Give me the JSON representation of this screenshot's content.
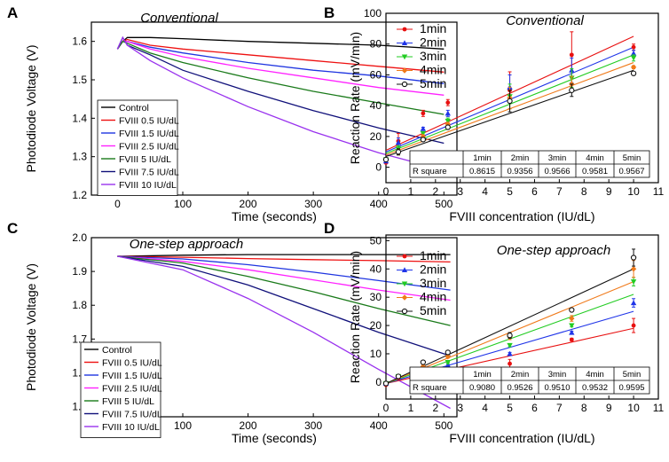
{
  "colors": {
    "control": "#000000",
    "fviii_0_5": "#ee1111",
    "fviii_1_5": "#1f35e0",
    "fviii_2_5": "#ff22ff",
    "fviii_5": "#1a7a1a",
    "fviii_7_5": "#10107a",
    "fviii_10": "#9932ee",
    "min1": "#e81010",
    "min2": "#2035e8",
    "min3": "#22cc22",
    "min4": "#f07a1a",
    "min5": "#111111"
  },
  "chart_data": [
    {
      "id": "A",
      "panel_label": "A",
      "type": "line",
      "title": "Conventional",
      "xlabel": "Time (seconds)",
      "ylabel": "Photodiode Voltage (V)",
      "xlim": [
        -40,
        520
      ],
      "ylim": [
        1.2,
        1.65
      ],
      "xticks": [
        "0",
        "100",
        "200",
        "300",
        "400",
        "500"
      ],
      "yticks": [
        "1.2",
        "1.3",
        "1.4",
        "1.5",
        "1.6"
      ],
      "xtick_values": [
        0,
        100,
        200,
        300,
        400,
        500
      ],
      "ytick_values": [
        1.2,
        1.3,
        1.4,
        1.5,
        1.6
      ],
      "legend": "bottom-left",
      "series": [
        {
          "name": "Control",
          "color": "#000000",
          "x": [
            0,
            8,
            15,
            50,
            100,
            200,
            300,
            400,
            500
          ],
          "y": [
            1.58,
            1.6,
            1.61,
            1.61,
            1.607,
            1.6,
            1.595,
            1.59,
            1.58
          ]
        },
        {
          "name": "FVIII 0.5 IU/dL",
          "color": "#ee1111",
          "x": [
            0,
            8,
            15,
            50,
            100,
            200,
            300,
            400,
            500
          ],
          "y": [
            1.58,
            1.6,
            1.605,
            1.59,
            1.58,
            1.565,
            1.55,
            1.535,
            1.52
          ]
        },
        {
          "name": "FVIII 1.5 IU/dL",
          "color": "#1f35e0",
          "x": [
            0,
            8,
            15,
            50,
            100,
            200,
            300,
            400,
            500
          ],
          "y": [
            1.58,
            1.6,
            1.6,
            1.585,
            1.57,
            1.545,
            1.525,
            1.51,
            1.49
          ]
        },
        {
          "name": "FVIII 2.5 IU/dL",
          "color": "#ff22ff",
          "x": [
            0,
            8,
            15,
            50,
            100,
            200,
            300,
            400,
            500
          ],
          "y": [
            1.58,
            1.6,
            1.6,
            1.58,
            1.56,
            1.53,
            1.505,
            1.48,
            1.46
          ]
        },
        {
          "name": "FVIII 5 IU/dL",
          "color": "#1a7a1a",
          "x": [
            0,
            8,
            15,
            50,
            100,
            200,
            300,
            400,
            500
          ],
          "y": [
            1.58,
            1.6,
            1.595,
            1.57,
            1.545,
            1.505,
            1.47,
            1.44,
            1.41
          ]
        },
        {
          "name": "FVIII 7.5 IU/dL",
          "color": "#10107a",
          "x": [
            0,
            8,
            15,
            50,
            100,
            200,
            300,
            400,
            500
          ],
          "y": [
            1.58,
            1.61,
            1.59,
            1.565,
            1.525,
            1.47,
            1.42,
            1.375,
            1.335
          ]
        },
        {
          "name": "FVIII 10 IU/dL",
          "color": "#9932ee",
          "x": [
            0,
            8,
            15,
            50,
            100,
            200,
            300,
            400,
            500
          ],
          "y": [
            1.58,
            1.61,
            1.59,
            1.55,
            1.505,
            1.43,
            1.365,
            1.31,
            1.265
          ]
        }
      ]
    },
    {
      "id": "B",
      "panel_label": "B",
      "type": "scatter",
      "title": "Conventional",
      "xlabel": "FVIII concentration (IU/dL)",
      "ylabel": "Reaction Rate (mV/min)",
      "xlim": [
        0,
        11
      ],
      "ylim": [
        -10,
        100
      ],
      "xticks": [
        "0",
        "1",
        "2",
        "3",
        "4",
        "5",
        "6",
        "7",
        "8",
        "9",
        "10",
        "11"
      ],
      "yticks": [
        "0",
        "20",
        "40",
        "60",
        "80",
        "100"
      ],
      "xtick_values": [
        0,
        1,
        2,
        3,
        4,
        5,
        6,
        7,
        8,
        9,
        10,
        11
      ],
      "ytick_values": [
        0,
        20,
        40,
        60,
        80,
        100
      ],
      "legend": "top-left",
      "x": [
        0,
        0.5,
        1.5,
        2.5,
        5,
        7.5,
        10
      ],
      "series": [
        {
          "name": "1min",
          "color": "#e81010",
          "marker": "circle-filled",
          "y": [
            3,
            17,
            35,
            42,
            50,
            73,
            78
          ],
          "err": [
            0,
            5,
            2,
            2,
            12,
            15,
            2
          ],
          "fit": [
            11,
            85
          ]
        },
        {
          "name": "2min",
          "color": "#2035e8",
          "marker": "triangle",
          "y": [
            4,
            16,
            25,
            35,
            52,
            63,
            74
          ],
          "err": [
            0,
            3,
            1,
            2,
            8,
            8,
            2
          ],
          "fit": [
            10,
            78
          ]
        },
        {
          "name": "3min",
          "color": "#22cc22",
          "marker": "triangle-down",
          "y": [
            5,
            12,
            22,
            30,
            46,
            58,
            71
          ],
          "err": [
            0,
            2,
            1,
            2,
            8,
            6,
            2
          ],
          "fit": [
            9,
            73
          ]
        },
        {
          "name": "4min",
          "color": "#f07a1a",
          "marker": "diamond",
          "y": [
            5,
            10,
            20,
            28,
            45,
            54,
            65
          ],
          "err": [
            0,
            2,
            1,
            1,
            7,
            5,
            1
          ],
          "fit": [
            8,
            68
          ]
        },
        {
          "name": "5min",
          "color": "#111111",
          "marker": "circle-open",
          "y": [
            5,
            10,
            18,
            26,
            43,
            50,
            61
          ],
          "err": [
            0,
            2,
            1,
            1,
            7,
            4,
            1
          ],
          "fit": [
            7,
            63
          ]
        }
      ],
      "table": {
        "header": [
          "",
          "1min",
          "2min",
          "3min",
          "4min",
          "5min"
        ],
        "rows": [
          [
            "R square",
            "0.8615",
            "0.9356",
            "0.9566",
            "0.9581",
            "0.9567"
          ]
        ]
      }
    },
    {
      "id": "C",
      "panel_label": "C",
      "type": "line",
      "title": "One-step approach",
      "xlabel": "Time (seconds)",
      "ylabel": "Photodiode Voltage (V)",
      "xlim": [
        -40,
        520
      ],
      "ylim": [
        1.47,
        2.0
      ],
      "xticks": [
        "0",
        "100",
        "200",
        "300",
        "400",
        "500"
      ],
      "yticks": [
        "1.5",
        "1.6",
        "1.7",
        "1.8",
        "1.9",
        "2.0"
      ],
      "xtick_values": [
        0,
        100,
        200,
        300,
        400,
        500
      ],
      "ytick_values": [
        1.5,
        1.6,
        1.7,
        1.8,
        1.9,
        2.0
      ],
      "legend": "bottom-left",
      "series": [
        {
          "name": "Control",
          "color": "#000000",
          "x": [
            0,
            100,
            200,
            300,
            400,
            510
          ],
          "y": [
            1.945,
            1.948,
            1.95,
            1.95,
            1.95,
            1.95
          ]
        },
        {
          "name": "FVIII 0.5 IU/dL",
          "color": "#ee1111",
          "x": [
            0,
            100,
            200,
            300,
            400,
            510
          ],
          "y": [
            1.945,
            1.942,
            1.938,
            1.935,
            1.932,
            1.928
          ]
        },
        {
          "name": "FVIII 1.5 IU/dL",
          "color": "#1f35e0",
          "x": [
            0,
            100,
            200,
            300,
            400,
            510
          ],
          "y": [
            1.945,
            1.937,
            1.92,
            1.898,
            1.873,
            1.845
          ]
        },
        {
          "name": "FVIII 2.5 IU/dL",
          "color": "#ff22ff",
          "x": [
            0,
            100,
            200,
            300,
            400,
            510
          ],
          "y": [
            1.945,
            1.93,
            1.905,
            1.875,
            1.845,
            1.815
          ]
        },
        {
          "name": "FVIII 5 IU/dL",
          "color": "#1a7a1a",
          "x": [
            0,
            100,
            200,
            300,
            400,
            510
          ],
          "y": [
            1.945,
            1.925,
            1.885,
            1.84,
            1.79,
            1.74
          ]
        },
        {
          "name": "FVIII 7.5 IU/dL",
          "color": "#10107a",
          "x": [
            0,
            100,
            200,
            300,
            400,
            510
          ],
          "y": [
            1.945,
            1.915,
            1.86,
            1.79,
            1.72,
            1.65
          ]
        },
        {
          "name": "FVIII 10 IU/dL",
          "color": "#9932ee",
          "x": [
            0,
            100,
            200,
            300,
            400,
            510
          ],
          "y": [
            1.945,
            1.905,
            1.82,
            1.72,
            1.61,
            1.495
          ]
        }
      ]
    },
    {
      "id": "D",
      "panel_label": "D",
      "type": "scatter",
      "title": "One-step approach",
      "xlabel": "FVIII concentration (IU/dL)",
      "ylabel": "Reaction Rate (mV/min)",
      "xlim": [
        0,
        11
      ],
      "ylim": [
        -6,
        52
      ],
      "xticks": [
        "0",
        "1",
        "2",
        "3",
        "4",
        "5",
        "6",
        "7",
        "8",
        "9",
        "10",
        "11"
      ],
      "yticks": [
        "0",
        "10",
        "20",
        "30",
        "40",
        "50"
      ],
      "xtick_values": [
        0,
        1,
        2,
        3,
        4,
        5,
        6,
        7,
        8,
        9,
        10,
        11
      ],
      "ytick_values": [
        0,
        10,
        20,
        30,
        40,
        50
      ],
      "legend": "top-left",
      "x": [
        0,
        0.5,
        1.5,
        2.5,
        5,
        7.5,
        10
      ],
      "series": [
        {
          "name": "1min",
          "color": "#e81010",
          "marker": "circle-filled",
          "y": [
            -1,
            1.5,
            3,
            4,
            6.5,
            15,
            20
          ],
          "err": [
            0,
            0.5,
            0.5,
            3,
            1.5,
            0.5,
            2.5
          ],
          "fit": [
            -0.5,
            19
          ]
        },
        {
          "name": "2min",
          "color": "#2035e8",
          "marker": "triangle",
          "y": [
            -0.5,
            2,
            3.5,
            6,
            10,
            17.5,
            28
          ],
          "err": [
            0,
            0.5,
            0.5,
            0.5,
            0.5,
            0.5,
            1.5
          ],
          "fit": [
            -0.5,
            25
          ]
        },
        {
          "name": "3min",
          "color": "#22cc22",
          "marker": "triangle-down",
          "y": [
            -0.5,
            2,
            4.5,
            7,
            13,
            20,
            35.5
          ],
          "err": [
            0,
            0.5,
            0.5,
            0.5,
            0.5,
            0.5,
            1.5
          ],
          "fit": [
            -0.5,
            31
          ]
        },
        {
          "name": "4min",
          "color": "#f07a1a",
          "marker": "diamond",
          "y": [
            -0.5,
            2,
            5.5,
            9,
            16,
            22.5,
            40
          ],
          "err": [
            0,
            0.5,
            0.5,
            0.5,
            1,
            1,
            3
          ],
          "fit": [
            -0.5,
            35.5
          ]
        },
        {
          "name": "5min",
          "color": "#111111",
          "marker": "circle-open",
          "y": [
            -0.5,
            2,
            7,
            10.5,
            16.5,
            25.5,
            44
          ],
          "err": [
            0,
            0.5,
            0.5,
            0.5,
            1,
            0.5,
            3
          ],
          "fit": [
            -0.5,
            40
          ]
        }
      ],
      "table": {
        "header": [
          "",
          "1min",
          "2min",
          "3min",
          "4min",
          "5min"
        ],
        "rows": [
          [
            "R square",
            "0.9080",
            "0.9526",
            "0.9510",
            "0.9532",
            "0.9595"
          ]
        ]
      }
    }
  ]
}
